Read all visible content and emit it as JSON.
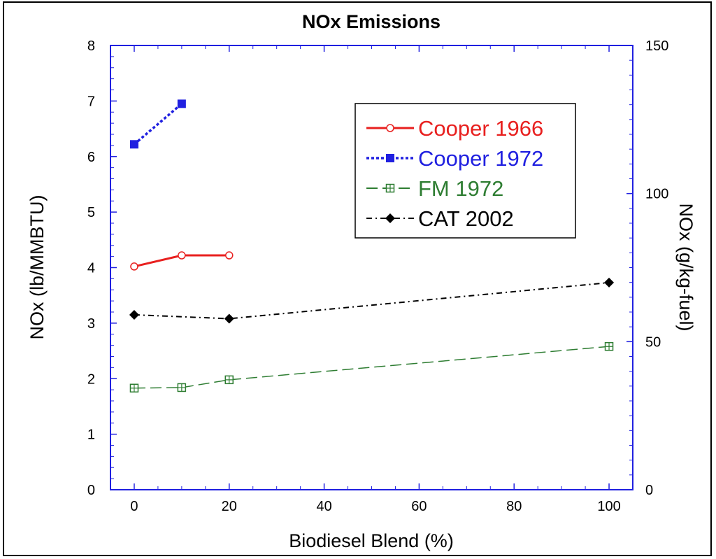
{
  "chart_data": {
    "type": "line",
    "title": "NOx Emissions",
    "xlabel": "Biodiesel Blend (%)",
    "ylabel": "NOx (lb/MMBTU)",
    "ylabel_right": "NOx (g/kg-fuel)",
    "xlim": [
      -5,
      105
    ],
    "ylim": [
      0,
      8
    ],
    "ylim_right": [
      0,
      150
    ],
    "x_ticks": [
      "0",
      "20",
      "40",
      "60",
      "80",
      "100"
    ],
    "y_ticks": [
      "0",
      "1",
      "2",
      "3",
      "4",
      "5",
      "6",
      "7",
      "8"
    ],
    "y_ticks_right": [
      "0",
      "50",
      "100",
      "150"
    ],
    "grid": false,
    "legend_position": "top-right",
    "series": [
      {
        "name": "Cooper 1966",
        "color": "#e8201f",
        "marker": "open-circle",
        "line": "solid",
        "x": [
          0,
          10,
          20
        ],
        "y": [
          4.02,
          4.22,
          4.22
        ]
      },
      {
        "name": "Cooper 1972",
        "color": "#2020e0",
        "marker": "filled-square",
        "line": "dotted",
        "x": [
          0,
          10
        ],
        "y": [
          6.22,
          6.95
        ]
      },
      {
        "name": "FM 1972",
        "color": "#2e7d32",
        "marker": "crossed-square",
        "line": "dashed",
        "x": [
          0,
          10,
          20,
          100
        ],
        "y": [
          1.83,
          1.84,
          1.98,
          2.58
        ]
      },
      {
        "name": "CAT 2002",
        "color": "#000000",
        "marker": "filled-diamond",
        "line": "dash-dot",
        "x": [
          0,
          20,
          100
        ],
        "y": [
          3.15,
          3.08,
          3.73
        ]
      }
    ]
  }
}
